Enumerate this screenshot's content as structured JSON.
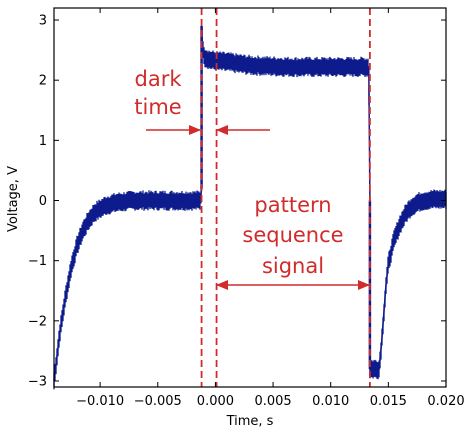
{
  "chart_data": {
    "type": "line",
    "xlabel": "Time, s",
    "ylabel": "Voltage, V",
    "xlim": [
      -0.014,
      0.02
    ],
    "ylim": [
      -3.1,
      3.2
    ],
    "x_ticks": [
      -0.01,
      -0.005,
      0.0,
      0.005,
      0.01,
      0.015,
      0.02
    ],
    "x_tick_labels": [
      "−0.010",
      "−0.005",
      "0.000",
      "0.005",
      "0.010",
      "0.015",
      "0.020"
    ],
    "y_ticks": [
      -3,
      -2,
      -1,
      0,
      1,
      2,
      3
    ],
    "y_tick_labels": [
      "−3",
      "−2",
      "−1",
      "0",
      "1",
      "2",
      "3"
    ],
    "grid": false,
    "colors": {
      "signal": "#0d1b8c",
      "annotation": "#d12b2b",
      "axes": "#000000"
    },
    "series": [
      {
        "x": [
          -0.014,
          -0.0135,
          -0.013,
          -0.0125,
          -0.012,
          -0.0115,
          -0.011,
          -0.0105,
          -0.0095,
          -0.0085,
          -0.007,
          -0.005,
          -0.003,
          -0.0013,
          -0.0012,
          -0.0012,
          -0.0011,
          -0.0009,
          -0.0005,
          0.0,
          0.001,
          0.003,
          0.005,
          0.007,
          0.009,
          0.011,
          0.0133,
          0.0134,
          0.0134,
          0.0142,
          0.0144,
          0.0146,
          0.0148,
          0.015,
          0.0155,
          0.016,
          0.0165,
          0.017,
          0.0175,
          0.018,
          0.019,
          0.02
        ],
        "y": [
          -3.0,
          -2.2,
          -1.6,
          -1.1,
          -0.75,
          -0.5,
          -0.33,
          -0.2,
          -0.08,
          -0.03,
          0.0,
          0.0,
          0.0,
          0.0,
          0.2,
          2.9,
          2.5,
          2.38,
          2.34,
          2.32,
          2.3,
          2.25,
          2.23,
          2.22,
          2.22,
          2.22,
          2.22,
          0.0,
          -2.8,
          -2.8,
          -2.4,
          -1.9,
          -1.4,
          -1.05,
          -0.65,
          -0.4,
          -0.22,
          -0.1,
          -0.04,
          0.0,
          0.02,
          0.02
        ],
        "noise_band": 0.28
      }
    ],
    "vlines": [
      -0.0012,
      0.0001,
      0.0134
    ],
    "annotations": {
      "dark_time_line1": "dark",
      "dark_time_line2": "time",
      "pattern_line1": "pattern",
      "pattern_line2": "sequence",
      "pattern_line3": "signal"
    }
  }
}
